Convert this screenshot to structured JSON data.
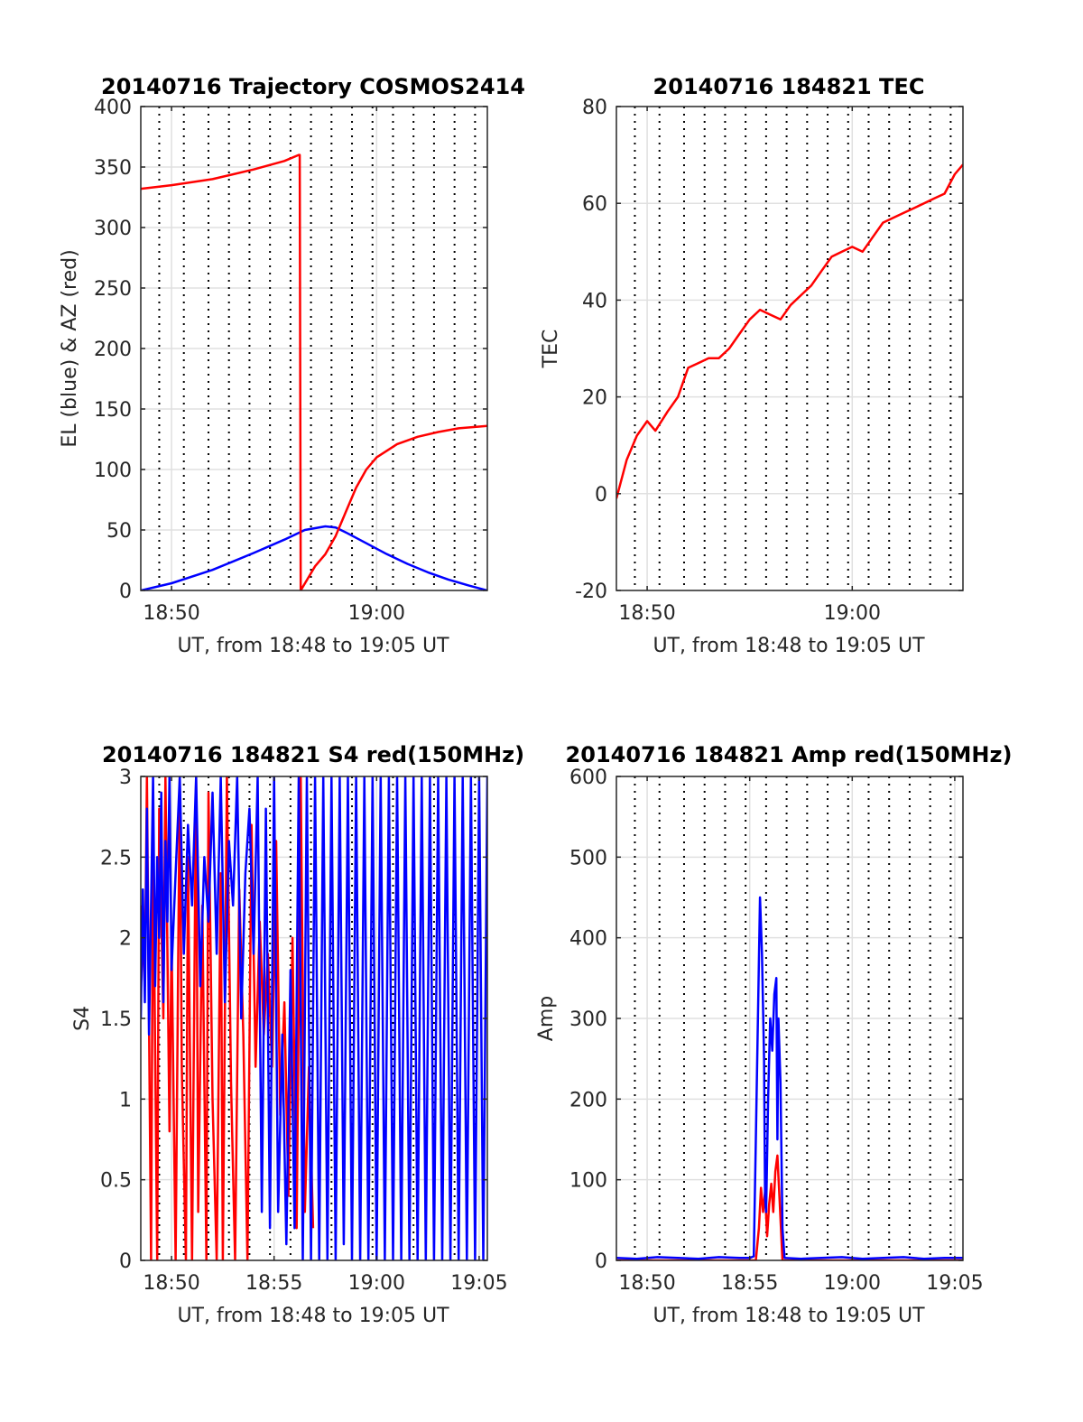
{
  "figure": {
    "background": "#ffffff",
    "axis_color": "#262626",
    "grid_color": "#e0e0e0"
  },
  "chart_data": [
    {
      "id": "trajectory",
      "type": "line",
      "title": "20140716 Trajectory COSMOS2414",
      "xlabel": "UT, from 18:48 to 19:05 UT",
      "ylabel": "EL (blue) & AZ (red)",
      "x_unit": "minutes after 18:00 UT",
      "xlim": [
        48.5,
        65.4
      ],
      "ylim": [
        0,
        400
      ],
      "xticks": [
        50,
        60
      ],
      "xtick_labels": [
        "18:50",
        "19:00"
      ],
      "yticks": [
        0,
        50,
        100,
        150,
        200,
        250,
        300,
        350,
        400
      ],
      "ytick_labels": [
        "0",
        "50",
        "100",
        "150",
        "200",
        "250",
        "300",
        "350",
        "400"
      ],
      "grid": true,
      "vertical_dotted_lines_minutes": [
        49.4,
        50.6,
        51.8,
        52.8,
        53.8,
        54.8,
        55.8,
        56.8,
        57.8,
        58.8,
        59.8,
        60.8,
        61.8,
        62.8,
        63.8,
        64.8
      ],
      "series": [
        {
          "color": "#0000ff",
          "x": [
            48.5,
            50,
            52,
            54,
            55.5,
            56.5,
            57.5,
            58,
            58.5,
            59.5,
            60.5,
            61.5,
            62.5,
            63.5,
            64.5,
            65.4
          ],
          "y": [
            0,
            6,
            17,
            31,
            42,
            50,
            53,
            52,
            48,
            39,
            30,
            22,
            15,
            9,
            4,
            0
          ]
        },
        {
          "color": "#ff0000",
          "x": [
            48.5,
            50,
            52,
            54,
            55.5,
            56.2,
            56.25,
            56.3,
            57,
            57.5,
            58,
            58.5,
            59,
            59.5,
            60,
            61,
            62,
            63,
            64,
            65.4
          ],
          "y": [
            332,
            335,
            340,
            348,
            355,
            360,
            360,
            0,
            20,
            30,
            45,
            65,
            85,
            100,
            110,
            121,
            127,
            131,
            134,
            136
          ]
        }
      ]
    },
    {
      "id": "tec",
      "type": "line",
      "title": "20140716 184821 TEC",
      "xlabel": "UT, from 18:48 to 19:05 UT",
      "ylabel": "TEC",
      "x_unit": "minutes after 18:00 UT",
      "xlim": [
        48.5,
        65.4
      ],
      "ylim": [
        -20,
        80
      ],
      "xticks": [
        50,
        60
      ],
      "xtick_labels": [
        "18:50",
        "19:00"
      ],
      "yticks": [
        -20,
        0,
        20,
        40,
        60,
        80
      ],
      "ytick_labels": [
        "-20",
        "0",
        "20",
        "40",
        "60",
        "80"
      ],
      "grid": true,
      "vertical_dotted_lines_minutes": [
        49.4,
        50.6,
        51.8,
        52.8,
        53.8,
        54.8,
        55.8,
        56.8,
        57.8,
        58.8,
        59.8,
        60.8,
        61.8,
        62.8,
        63.8,
        64.8
      ],
      "series": [
        {
          "color": "#ff0000",
          "x": [
            48.5,
            49,
            49.5,
            50,
            50.4,
            51,
            51.5,
            52,
            52.5,
            53,
            53.5,
            54,
            54.5,
            55,
            55.5,
            56,
            56.5,
            57,
            57.5,
            58,
            58.5,
            59,
            59.5,
            60,
            60.5,
            61,
            61.5,
            62,
            62.5,
            63,
            63.5,
            64,
            64.5,
            65,
            65.4
          ],
          "y": [
            -1,
            7,
            12,
            15,
            13,
            17,
            20,
            26,
            27,
            28,
            28,
            30,
            33,
            36,
            38,
            37,
            36,
            39,
            41,
            43,
            46,
            49,
            50,
            51,
            50,
            53,
            56,
            57,
            58,
            59,
            60,
            61,
            62,
            66,
            68
          ]
        }
      ]
    },
    {
      "id": "s4",
      "type": "line",
      "title": "20140716 184821 S4 red(150MHz)",
      "xlabel": "UT, from 18:48 to 19:05 UT",
      "ylabel": "S4",
      "x_unit": "minutes after 18:00 UT",
      "xlim": [
        48.5,
        65.4
      ],
      "ylim": [
        0,
        3
      ],
      "xticks": [
        50,
        55,
        60,
        65
      ],
      "xtick_labels": [
        "18:50",
        "18:55",
        "19:00",
        "19:05"
      ],
      "yticks": [
        0,
        0.5,
        1,
        1.5,
        2,
        2.5,
        3
      ],
      "ytick_labels": [
        "0",
        "0.5",
        "1",
        "1.5",
        "2",
        "2.5",
        "3"
      ],
      "grid": true,
      "vertical_dotted_lines_minutes": [
        49.4,
        50.6,
        51.8,
        52.8,
        53.8,
        54.8,
        55.8,
        56.8,
        57.8,
        58.8,
        59.8,
        60.8,
        61.8,
        62.8,
        63.8,
        64.8
      ],
      "series": [
        {
          "color": "#ff0000",
          "x": [
            48.5,
            48.7,
            48.8,
            49.0,
            49.1,
            49.3,
            49.4,
            49.6,
            49.7,
            49.9,
            50.0,
            50.2,
            50.4,
            50.5,
            50.7,
            50.8,
            51.0,
            51.2,
            51.3,
            51.5,
            51.7,
            51.8,
            52.0,
            52.2,
            52.4,
            52.5,
            52.7,
            52.9,
            53.1,
            53.3,
            53.5,
            53.7,
            53.9,
            54.1,
            54.3,
            54.5,
            54.7,
            54.9,
            55.1,
            55.3,
            55.5,
            55.7,
            55.9,
            56.1,
            56.3,
            56.5,
            56.7,
            56.9
          ],
          "y": [
            2.2,
            1.7,
            3.0,
            0.0,
            2.6,
            0.0,
            2.8,
            1.5,
            3.0,
            0.8,
            2.0,
            0.0,
            3.0,
            1.2,
            0.0,
            2.5,
            0.0,
            3.0,
            0.3,
            2.2,
            0.0,
            2.9,
            1.0,
            0.0,
            2.4,
            0.0,
            3.0,
            1.1,
            0.0,
            2.3,
            1.4,
            0.0,
            2.7,
            1.2,
            2.1,
            1.4,
            1.9,
            1.2,
            2.6,
            0.9,
            1.6,
            0.4,
            2.0,
            0.2,
            3.0,
            0.3,
            1.2,
            0.2
          ]
        },
        {
          "color": "#0000ff",
          "x": [
            48.5,
            48.6,
            48.7,
            48.8,
            48.9,
            49.0,
            49.1,
            49.2,
            49.3,
            49.4,
            49.5,
            49.6,
            49.7,
            49.8,
            49.9,
            50.0,
            50.2,
            50.4,
            50.6,
            50.8,
            51.0,
            51.2,
            51.4,
            51.6,
            51.8,
            52.0,
            52.2,
            52.4,
            52.6,
            52.8,
            53.0,
            53.2,
            53.4,
            53.6,
            53.8,
            54.0,
            54.2,
            54.4,
            54.6,
            54.8,
            55.0,
            55.2,
            55.4,
            55.6,
            55.8,
            56.0,
            56.2,
            56.4,
            56.6,
            56.8,
            57.0,
            57.2,
            57.4,
            57.6,
            57.8,
            58.0,
            58.2,
            58.4,
            58.6,
            58.8,
            59.0,
            59.2,
            59.4,
            59.6,
            59.8,
            60.0,
            60.2,
            60.4,
            60.6,
            60.8,
            61.0,
            61.2,
            61.4,
            61.6,
            61.8,
            62.0,
            62.2,
            62.4,
            62.6,
            62.8,
            63.0,
            63.2,
            63.4,
            63.6,
            63.8,
            64.0,
            64.2,
            64.4,
            64.6,
            64.8,
            65.0,
            65.2,
            65.4
          ],
          "y": [
            1.5,
            2.3,
            1.6,
            2.8,
            1.4,
            2.2,
            3.0,
            1.7,
            2.5,
            2.0,
            2.9,
            1.6,
            2.6,
            2.1,
            3.0,
            1.8,
            2.4,
            3.0,
            1.9,
            2.7,
            2.2,
            3.0,
            1.7,
            2.5,
            2.1,
            2.9,
            1.9,
            3.0,
            1.6,
            2.6,
            2.2,
            3.0,
            1.5,
            2.4,
            2.8,
            1.9,
            3.0,
            0.3,
            2.8,
            0.2,
            3.0,
            0.3,
            1.4,
            0.1,
            1.8,
            0.2,
            3.0,
            0.0,
            3.0,
            0.0,
            3.0,
            0.0,
            3.0,
            0.0,
            3.0,
            0.0,
            3.0,
            0.1,
            3.0,
            0.0,
            3.0,
            0.0,
            3.0,
            0.0,
            3.0,
            0.0,
            3.0,
            0.0,
            3.0,
            0.0,
            3.0,
            0.0,
            3.0,
            0.0,
            3.0,
            0.0,
            3.0,
            0.0,
            3.0,
            0.0,
            3.0,
            0.0,
            3.0,
            0.0,
            3.0,
            0.0,
            3.0,
            0.0,
            3.0,
            0.0,
            3.0,
            0.0,
            3.0
          ]
        }
      ]
    },
    {
      "id": "amp",
      "type": "line",
      "title": "20140716 184821 Amp red(150MHz)",
      "xlabel": "UT, from 18:48 to 19:05 UT",
      "ylabel": "Amp",
      "x_unit": "minutes after 18:00 UT",
      "xlim": [
        48.5,
        65.4
      ],
      "ylim": [
        0,
        600
      ],
      "xticks": [
        50,
        55,
        60,
        65
      ],
      "xtick_labels": [
        "18:50",
        "18:55",
        "19:00",
        "19:05"
      ],
      "yticks": [
        0,
        100,
        200,
        300,
        400,
        500,
        600
      ],
      "ytick_labels": [
        "0",
        "100",
        "200",
        "300",
        "400",
        "500",
        "600"
      ],
      "grid": true,
      "vertical_dotted_lines_minutes": [
        49.4,
        50.6,
        51.8,
        52.8,
        53.8,
        54.8,
        55.8,
        56.8,
        57.8,
        58.8,
        59.8,
        60.8,
        61.8,
        62.8,
        63.8,
        64.8
      ],
      "series": [
        {
          "color": "#ff0000",
          "x": [
            48.5,
            55.0,
            55.3,
            55.45,
            55.55,
            55.65,
            55.75,
            55.85,
            55.95,
            56.05,
            56.15,
            56.25,
            56.35,
            56.45,
            56.6,
            56.8,
            65.4
          ],
          "y": [
            0,
            0,
            0,
            40,
            90,
            60,
            85,
            30,
            70,
            95,
            60,
            110,
            130,
            80,
            0,
            0,
            0
          ]
        },
        {
          "color": "#0000ff",
          "x": [
            48.5,
            49.5,
            50.5,
            51.5,
            52.5,
            53.5,
            54.5,
            55.0,
            55.2,
            55.3,
            55.4,
            55.5,
            55.6,
            55.7,
            55.75,
            55.8,
            55.9,
            56.0,
            56.1,
            56.2,
            56.3,
            56.35,
            56.4,
            56.5,
            56.6,
            56.7,
            57.5,
            58.5,
            59.5,
            60.5,
            61.5,
            62.5,
            63.5,
            64.5,
            65.4
          ],
          "y": [
            3,
            2,
            4,
            3,
            2,
            4,
            3,
            3,
            5,
            150,
            300,
            450,
            380,
            250,
            80,
            60,
            200,
            300,
            260,
            330,
            350,
            150,
            300,
            220,
            40,
            3,
            2,
            3,
            4,
            2,
            3,
            4,
            2,
            3,
            3
          ]
        }
      ]
    }
  ]
}
